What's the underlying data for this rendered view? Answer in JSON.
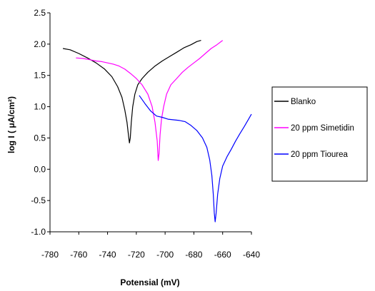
{
  "chart_data": {
    "type": "line",
    "title": "",
    "xlabel": "Potensial (mV)",
    "ylabel": "log I (  μA/cm²)",
    "xlim": [
      -780,
      -640
    ],
    "ylim": [
      -1.0,
      2.5
    ],
    "xticks": [
      -780,
      -760,
      -740,
      -720,
      -700,
      -680,
      -660,
      -640
    ],
    "yticks": [
      -1.0,
      -0.5,
      0.0,
      0.5,
      1.0,
      1.5,
      2.0,
      2.5
    ],
    "xtick_labels": [
      "-780",
      "-760",
      "-740",
      "-720",
      "-700",
      "-680",
      "-660",
      "-640"
    ],
    "ytick_labels": [
      "-1.0",
      "-0.5",
      "0.0",
      "0.5",
      "1.0",
      "1.5",
      "2.0",
      "2.5"
    ],
    "grid": false,
    "legend_position": "right",
    "series": [
      {
        "name": "Blanko",
        "color": "#000000",
        "x": [
          -771,
          -766,
          -760,
          -754,
          -748,
          -742,
          -737,
          -733,
          -730,
          -728,
          -726.5,
          -725.5,
          -724.8,
          -724.2,
          -723.5,
          -722.5,
          -721,
          -719,
          -716,
          -712,
          -707,
          -702,
          -697,
          -692,
          -687,
          -682,
          -678,
          -675
        ],
        "y": [
          1.93,
          1.91,
          1.85,
          1.78,
          1.7,
          1.6,
          1.48,
          1.32,
          1.15,
          0.95,
          0.75,
          0.55,
          0.42,
          0.5,
          0.75,
          1.0,
          1.2,
          1.35,
          1.45,
          1.55,
          1.65,
          1.73,
          1.8,
          1.87,
          1.94,
          1.99,
          2.04,
          2.06
        ]
      },
      {
        "name": "20 ppm Simetidin",
        "color": "#ff00ff",
        "x": [
          -762,
          -757,
          -752,
          -748,
          -744,
          -740,
          -736,
          -732,
          -728,
          -724,
          -720,
          -716,
          -712,
          -709,
          -707,
          -705.5,
          -704.8,
          -704.2,
          -703.5,
          -702.5,
          -701,
          -699,
          -696,
          -692,
          -688,
          -684,
          -680,
          -676,
          -672,
          -668,
          -664,
          -660
        ],
        "y": [
          1.78,
          1.77,
          1.75,
          1.73,
          1.72,
          1.7,
          1.68,
          1.65,
          1.6,
          1.53,
          1.45,
          1.35,
          1.2,
          1.0,
          0.75,
          0.45,
          0.14,
          0.25,
          0.55,
          0.8,
          1.0,
          1.2,
          1.35,
          1.45,
          1.55,
          1.63,
          1.7,
          1.77,
          1.85,
          1.93,
          1.99,
          2.06
        ]
      },
      {
        "name": "20 ppm Tiourea",
        "color": "#0000ff",
        "x": [
          -718,
          -714,
          -710,
          -706,
          -702,
          -698,
          -694,
          -690,
          -686,
          -682,
          -678,
          -674,
          -671,
          -669,
          -667.5,
          -666.5,
          -665.8,
          -665.2,
          -664.5,
          -663.5,
          -662,
          -660,
          -657,
          -654,
          -651,
          -648,
          -645,
          -642,
          -640
        ],
        "y": [
          1.18,
          1.05,
          0.93,
          0.85,
          0.83,
          0.8,
          0.79,
          0.78,
          0.76,
          0.7,
          0.62,
          0.5,
          0.35,
          0.15,
          -0.1,
          -0.4,
          -0.7,
          -0.84,
          -0.7,
          -0.4,
          -0.15,
          0.05,
          0.2,
          0.32,
          0.45,
          0.57,
          0.68,
          0.8,
          0.88
        ]
      }
    ]
  }
}
